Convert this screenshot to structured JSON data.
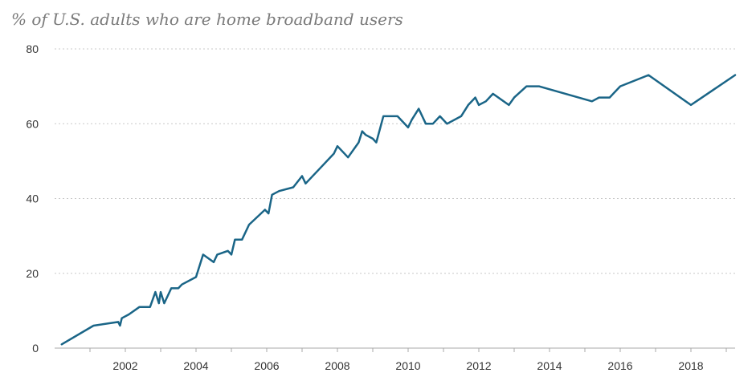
{
  "chart_data": {
    "type": "line",
    "title": "% of U.S. adults who are home broadband users",
    "xlabel": "",
    "ylabel": "",
    "xlim": [
      2000.0,
      2019.25
    ],
    "ylim": [
      0,
      80
    ],
    "yticks": [
      0,
      20,
      40,
      60,
      80
    ],
    "xticks": [
      2002,
      2004,
      2006,
      2008,
      2010,
      2012,
      2014,
      2016,
      2018
    ],
    "grid": true,
    "legend": "none",
    "colors": {
      "line": "#1a6587",
      "grid": "#c8c8c8",
      "title": "#7a7a7a"
    },
    "series": [
      {
        "x": [
          2000.2,
          2001.1,
          2001.8,
          2001.85,
          2001.9,
          2002.1,
          2002.4,
          2002.7,
          2002.85,
          2002.95,
          2003.0,
          2003.1,
          2003.3,
          2003.5,
          2003.6,
          2004.0,
          2004.2,
          2004.5,
          2004.6,
          2004.9,
          2005.0,
          2005.1,
          2005.3,
          2005.5,
          2005.95,
          2006.05,
          2006.15,
          2006.35,
          2006.75,
          2007.0,
          2007.1,
          2007.5,
          2007.9,
          2008.0,
          2008.3,
          2008.6,
          2008.7,
          2008.8,
          2009.0,
          2009.1,
          2009.3,
          2009.7,
          2010.0,
          2010.1,
          2010.3,
          2010.5,
          2010.7,
          2010.9,
          2011.0,
          2011.1,
          2011.5,
          2011.7,
          2011.9,
          2012.0,
          2012.2,
          2012.4,
          2012.85,
          2013.0,
          2013.35,
          2013.7,
          2015.2,
          2015.4,
          2015.7,
          2016.0,
          2016.8,
          2018.0,
          2019.25
        ],
        "y": [
          1,
          6,
          7,
          6,
          8,
          9,
          11,
          11,
          15,
          12,
          15,
          12,
          16,
          16,
          17,
          19,
          25,
          23,
          25,
          26,
          25,
          29,
          29,
          33,
          37,
          36,
          41,
          42,
          43,
          46,
          44,
          48,
          52,
          54,
          51,
          55,
          58,
          57,
          56,
          55,
          62,
          62,
          59,
          61,
          64,
          60,
          60,
          62,
          61,
          60,
          62,
          65,
          67,
          65,
          66,
          68,
          65,
          67,
          70,
          70,
          66,
          67,
          67,
          70,
          73,
          65,
          73
        ]
      }
    ]
  }
}
